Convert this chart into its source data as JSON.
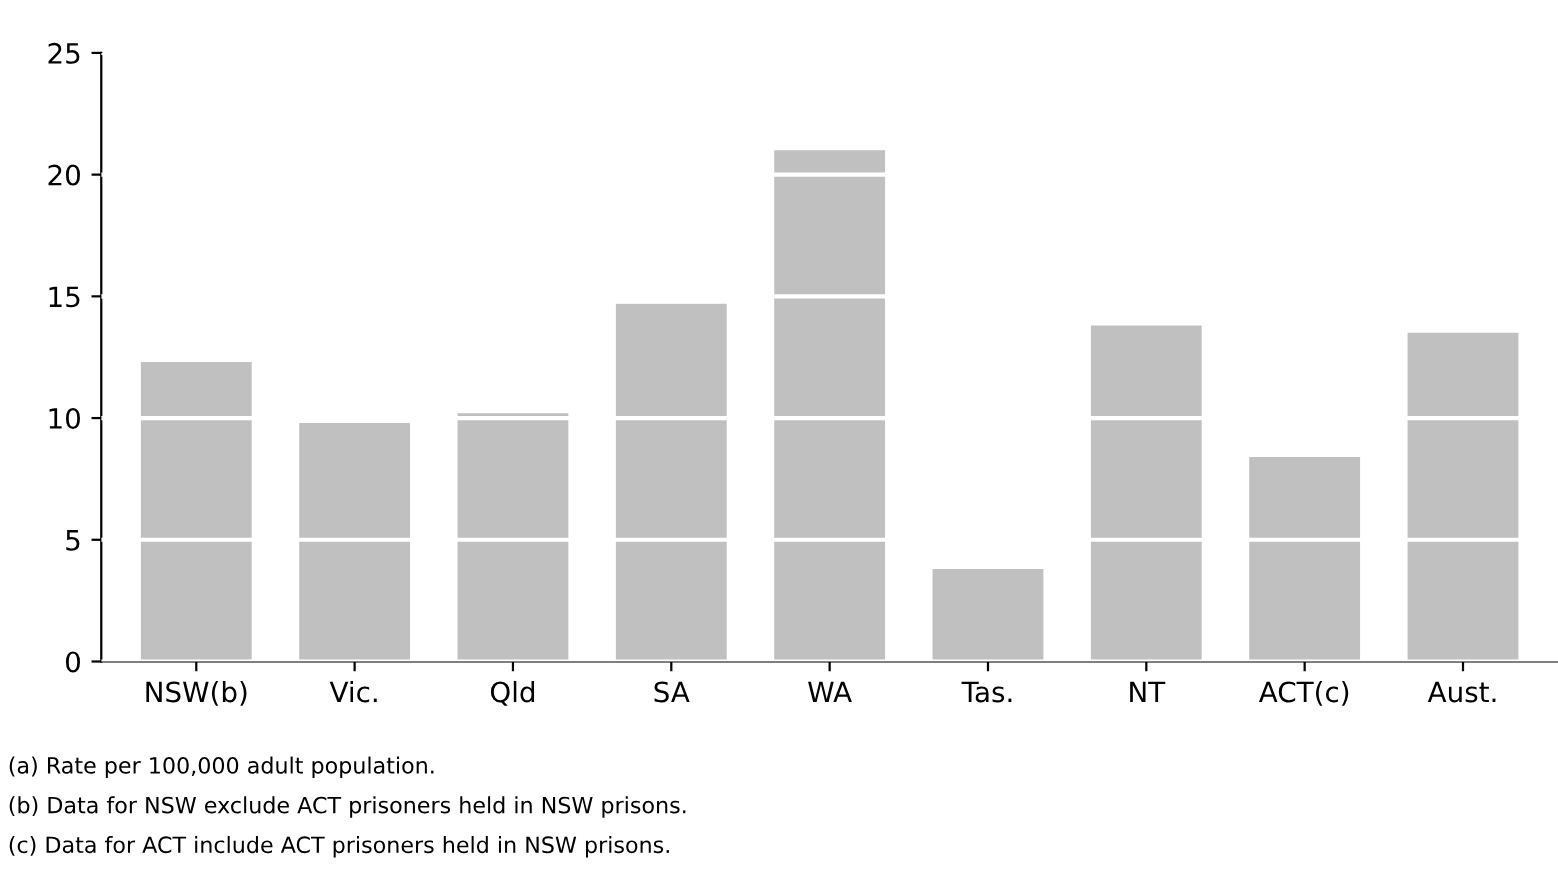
{
  "chart_data": {
    "type": "bar",
    "categories": [
      "NSW(b)",
      "Vic.",
      "Qld",
      "SA",
      "WA",
      "Tas.",
      "NT",
      "ACT(c)",
      "Aust."
    ],
    "values": [
      12.3,
      9.8,
      10.2,
      14.7,
      21.0,
      3.8,
      13.8,
      8.4,
      13.5
    ],
    "color": "#c0c0c0",
    "ylim": [
      0,
      25
    ],
    "yticks": [
      0,
      5,
      10,
      15,
      20,
      25
    ],
    "grid": "y",
    "annotations": [
      "(a) Rate per 100,000 adult population.",
      "(b) Data for NSW exclude ACT prisoners held in NSW prisons.",
      "(c) Data for ACT include ACT prisoners held in NSW prisons."
    ]
  }
}
